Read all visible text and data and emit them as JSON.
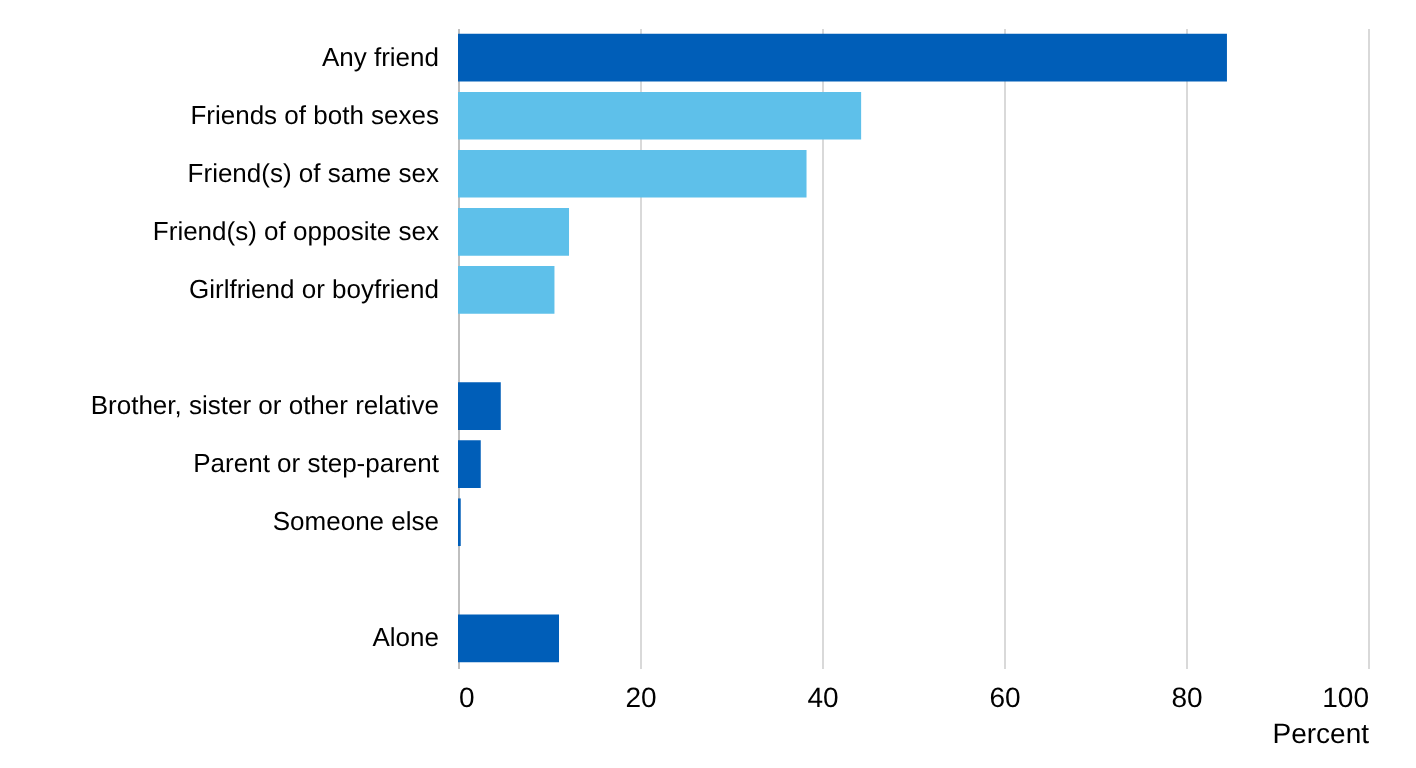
{
  "chart_data": {
    "type": "bar",
    "orientation": "horizontal",
    "categories": [
      "Any friend",
      "Friends of both sexes",
      "Friend(s) of same sex",
      "Friend(s) of opposite sex",
      "Girlfriend or boyfriend",
      null,
      "Brother, sister or other relative",
      "Parent or step-parent",
      "Someone else",
      null,
      "Alone"
    ],
    "values": [
      84.5,
      44.3,
      38.3,
      12.2,
      10.6,
      null,
      4.7,
      2.5,
      0.3,
      null,
      11.1
    ],
    "colors": [
      "#005eb8",
      "#5ec0ea",
      "#5ec0ea",
      "#5ec0ea",
      "#5ec0ea",
      null,
      "#005eb8",
      "#005eb8",
      "#005eb8",
      null,
      "#005eb8"
    ],
    "xlabel": "Percent",
    "xlim": [
      0,
      100
    ],
    "xticks": [
      0,
      20,
      40,
      60,
      80,
      100
    ],
    "grid": "x"
  }
}
